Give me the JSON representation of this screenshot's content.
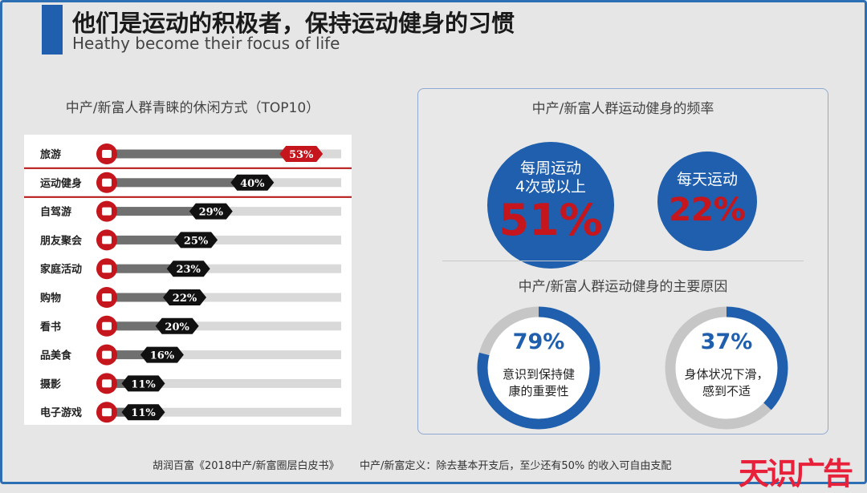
{
  "header": {
    "title": "他们是运动的积极者，保持运动健身的习惯",
    "subtitle": "Heathy become their focus of life"
  },
  "colors": {
    "brand_blue": "#1f5fad",
    "accent_red": "#c4161c",
    "bar_dark": "#707070",
    "bar_light": "#d9d9d9",
    "highlight": "#b71c1c",
    "donut_track": "#c6c6c6"
  },
  "chart_data": [
    {
      "type": "bar",
      "title": "中产/新富人群青睐的休闲方式（TOP10）",
      "categories": [
        "旅游",
        "运动健身",
        "自驾游",
        "朋友聚会",
        "家庭活动",
        "购物",
        "看书",
        "品美食",
        "摄影",
        "电子游戏"
      ],
      "icons": [
        "luggage-icon",
        "fitness-icon",
        "car-icon",
        "party-icon",
        "family-icon",
        "shopping-bag-icon",
        "book-icon",
        "dining-icon",
        "camera-icon",
        "gamepad-icon"
      ],
      "values": [
        53,
        40,
        29,
        25,
        23,
        22,
        20,
        16,
        11,
        11
      ],
      "value_labels": [
        "53%",
        "40%",
        "29%",
        "25%",
        "23%",
        "22%",
        "20%",
        "16%",
        "11%",
        "11%"
      ],
      "highlighted": "运动健身",
      "xlim": [
        0,
        63
      ]
    },
    {
      "type": "bubble",
      "title": "中产/新富人群运动健身的频率",
      "items": [
        {
          "label_lines": [
            "每周运动",
            "4次或以上"
          ],
          "value": 51,
          "value_label": "51%"
        },
        {
          "label_lines": [
            "每天运动"
          ],
          "value": 22,
          "value_label": "22%"
        }
      ]
    },
    {
      "type": "donut",
      "title": "中产/新富人群运动健身的主要原因",
      "items": [
        {
          "value": 79,
          "value_label": "79%",
          "text_lines": [
            "意识到保持健",
            "康的重要性"
          ]
        },
        {
          "value": 37,
          "value_label": "37%",
          "text_lines": [
            "身体状况下滑，",
            "感到不适"
          ]
        }
      ]
    }
  ],
  "footer": {
    "source": "胡润百富《2018中产/新富圈层白皮书》",
    "definition": "中产/新富定义：除去基本开支后，至少还有50% 的收入可自由支配"
  },
  "watermark": "天识广告"
}
